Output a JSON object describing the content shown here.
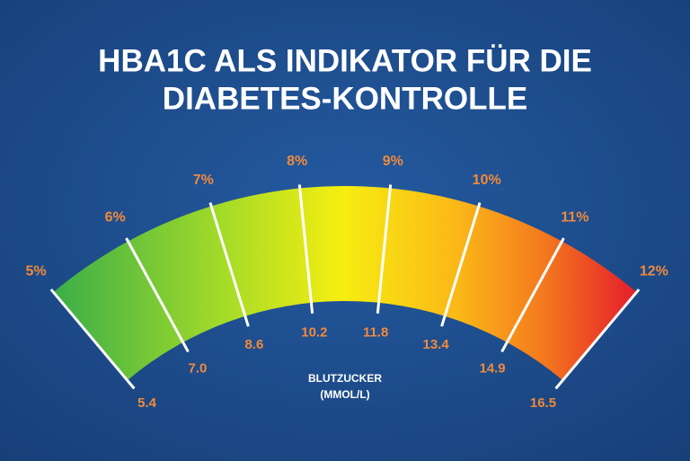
{
  "title": [
    "HBA1C ALS INDIKATOR FÜR DIE",
    "DIABETES-KONTROLLE"
  ],
  "hba1c_labels": [
    "5%",
    "6%",
    "7%",
    "8%",
    "9%",
    "10%",
    "11%",
    "12%"
  ],
  "glucose_labels": [
    "5.4",
    "7.0",
    "8.6",
    "10.2",
    "11.8",
    "13.4",
    "14.9",
    "16.5"
  ],
  "unit_label": [
    "BLUTZUCKER",
    "(MMOL/L)"
  ]
}
